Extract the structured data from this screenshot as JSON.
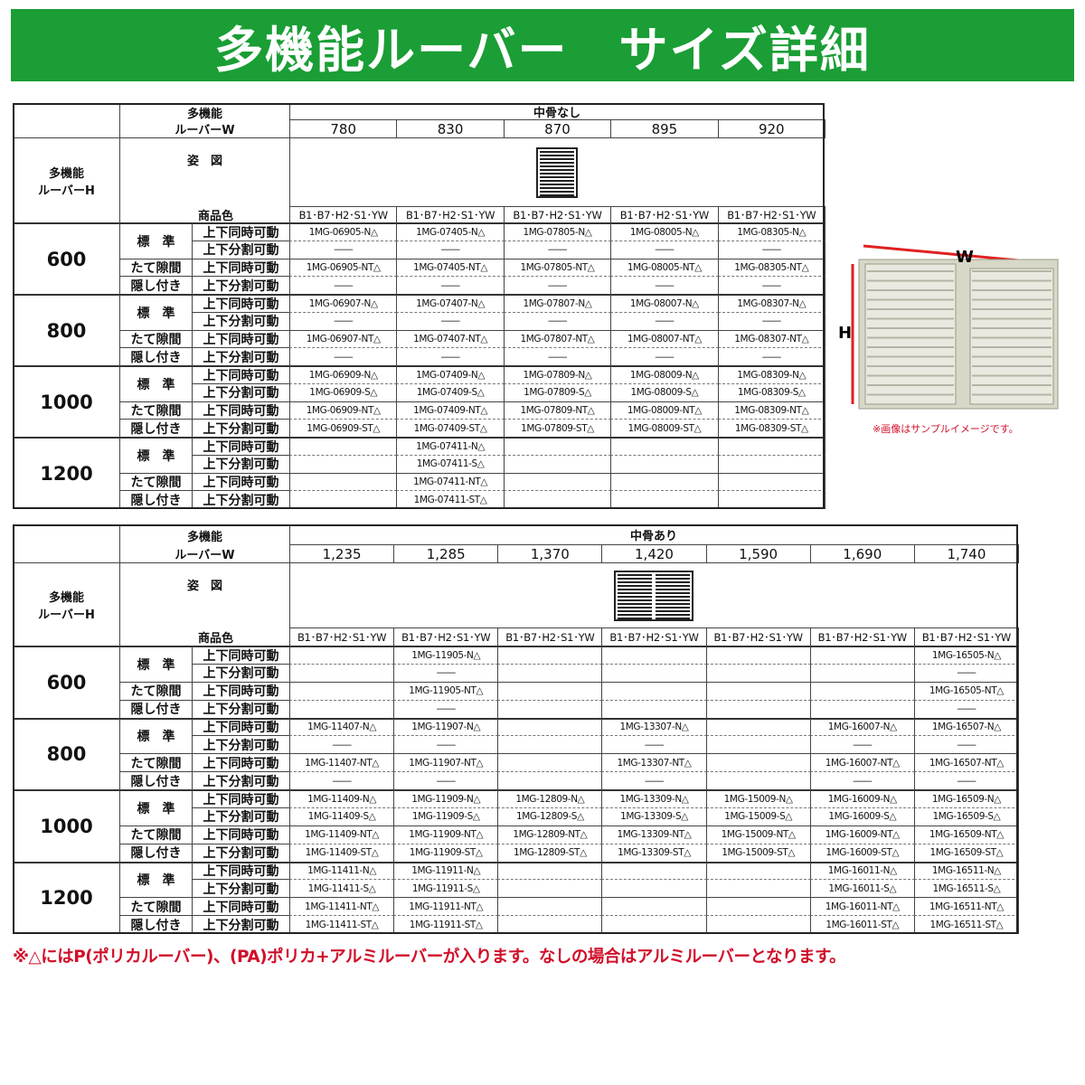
{
  "header": {
    "title": "多機能ルーバー　サイズ詳細"
  },
  "tables": [
    {
      "w_label": [
        "多機能",
        "ルーバーW"
      ],
      "h_label": [
        "多機能",
        "ルーバーH"
      ],
      "group": "中骨なし",
      "widths": [
        "780",
        "830",
        "870",
        "895",
        "920"
      ],
      "figure_label": "姿　図",
      "color_label": "商品色",
      "colors": [
        "B1･B7･H2･S1･YW",
        "B1･B7･H2･S1･YW",
        "B1･B7･H2･S1･YW",
        "B1･B7･H2･S1･YW",
        "B1･B7･H2･S1･YW"
      ],
      "row_types": [
        "標　準",
        "たて隙間",
        "隠し付き"
      ],
      "movements": [
        "上下同時可動",
        "上下分割可動"
      ],
      "sections": [
        {
          "height": "600",
          "rows": [
            [
              "1MG-06905-N△",
              "1MG-07405-N△",
              "1MG-07805-N△",
              "1MG-08005-N△",
              "1MG-08305-N△"
            ],
            [
              "――",
              "――",
              "――",
              "――",
              "――"
            ],
            [
              "1MG-06905-NT△",
              "1MG-07405-NT△",
              "1MG-07805-NT△",
              "1MG-08005-NT△",
              "1MG-08305-NT△"
            ],
            [
              "――",
              "――",
              "――",
              "――",
              "――"
            ]
          ]
        },
        {
          "height": "800",
          "rows": [
            [
              "1MG-06907-N△",
              "1MG-07407-N△",
              "1MG-07807-N△",
              "1MG-08007-N△",
              "1MG-08307-N△"
            ],
            [
              "――",
              "――",
              "――",
              "――",
              "――"
            ],
            [
              "1MG-06907-NT△",
              "1MG-07407-NT△",
              "1MG-07807-NT△",
              "1MG-08007-NT△",
              "1MG-08307-NT△"
            ],
            [
              "――",
              "――",
              "――",
              "――",
              "――"
            ]
          ]
        },
        {
          "height": "1000",
          "rows": [
            [
              "1MG-06909-N△",
              "1MG-07409-N△",
              "1MG-07809-N△",
              "1MG-08009-N△",
              "1MG-08309-N△"
            ],
            [
              "1MG-06909-S△",
              "1MG-07409-S△",
              "1MG-07809-S△",
              "1MG-08009-S△",
              "1MG-08309-S△"
            ],
            [
              "1MG-06909-NT△",
              "1MG-07409-NT△",
              "1MG-07809-NT△",
              "1MG-08009-NT△",
              "1MG-08309-NT△"
            ],
            [
              "1MG-06909-ST△",
              "1MG-07409-ST△",
              "1MG-07809-ST△",
              "1MG-08009-ST△",
              "1MG-08309-ST△"
            ]
          ]
        },
        {
          "height": "1200",
          "rows": [
            [
              null,
              "1MG-07411-N△",
              null,
              null,
              null
            ],
            [
              null,
              "1MG-07411-S△",
              null,
              null,
              null
            ],
            [
              null,
              "1MG-07411-NT△",
              null,
              null,
              null
            ],
            [
              null,
              "1MG-07411-ST△",
              null,
              null,
              null
            ]
          ]
        }
      ]
    },
    {
      "w_label": [
        "多機能",
        "ルーバーW"
      ],
      "h_label": [
        "多機能",
        "ルーバーH"
      ],
      "group": "中骨あり",
      "widths": [
        "1,235",
        "1,285",
        "1,370",
        "1,420",
        "1,590",
        "1,690",
        "1,740"
      ],
      "figure_label": "姿　図",
      "color_label": "商品色",
      "colors": [
        "B1･B7･H2･S1･YW",
        "B1･B7･H2･S1･YW",
        "B1･B7･H2･S1･YW",
        "B1･B7･H2･S1･YW",
        "B1･B7･H2･S1･YW",
        "B1･B7･H2･S1･YW",
        "B1･B7･H2･S1･YW"
      ],
      "row_types": [
        "標　準",
        "たて隙間",
        "隠し付き"
      ],
      "movements": [
        "上下同時可動",
        "上下分割可動"
      ],
      "sections": [
        {
          "height": "600",
          "rows": [
            [
              null,
              "1MG-11905-N△",
              null,
              null,
              null,
              null,
              "1MG-16505-N△"
            ],
            [
              null,
              "――",
              null,
              null,
              null,
              null,
              "――"
            ],
            [
              null,
              "1MG-11905-NT△",
              null,
              null,
              null,
              null,
              "1MG-16505-NT△"
            ],
            [
              null,
              "――",
              null,
              null,
              null,
              null,
              "――"
            ]
          ]
        },
        {
          "height": "800",
          "rows": [
            [
              "1MG-11407-N△",
              "1MG-11907-N△",
              null,
              "1MG-13307-N△",
              null,
              "1MG-16007-N△",
              "1MG-16507-N△"
            ],
            [
              "――",
              "――",
              null,
              "――",
              null,
              "――",
              "――"
            ],
            [
              "1MG-11407-NT△",
              "1MG-11907-NT△",
              null,
              "1MG-13307-NT△",
              null,
              "1MG-16007-NT△",
              "1MG-16507-NT△"
            ],
            [
              "――",
              "――",
              null,
              "――",
              null,
              "――",
              "――"
            ]
          ]
        },
        {
          "height": "1000",
          "rows": [
            [
              "1MG-11409-N△",
              "1MG-11909-N△",
              "1MG-12809-N△",
              "1MG-13309-N△",
              "1MG-15009-N△",
              "1MG-16009-N△",
              "1MG-16509-N△"
            ],
            [
              "1MG-11409-S△",
              "1MG-11909-S△",
              "1MG-12809-S△",
              "1MG-13309-S△",
              "1MG-15009-S△",
              "1MG-16009-S△",
              "1MG-16509-S△"
            ],
            [
              "1MG-11409-NT△",
              "1MG-11909-NT△",
              "1MG-12809-NT△",
              "1MG-13309-NT△",
              "1MG-15009-NT△",
              "1MG-16009-NT△",
              "1MG-16509-NT△"
            ],
            [
              "1MG-11409-ST△",
              "1MG-11909-ST△",
              "1MG-12809-ST△",
              "1MG-13309-ST△",
              "1MG-15009-ST△",
              "1MG-16009-ST△",
              "1MG-16509-ST△"
            ]
          ]
        },
        {
          "height": "1200",
          "rows": [
            [
              "1MG-11411-N△",
              "1MG-11911-N△",
              null,
              null,
              null,
              "1MG-16011-N△",
              "1MG-16511-N△"
            ],
            [
              "1MG-11411-S△",
              "1MG-11911-S△",
              null,
              null,
              null,
              "1MG-16011-S△",
              "1MG-16511-S△"
            ],
            [
              "1MG-11411-NT△",
              "1MG-11911-NT△",
              null,
              null,
              null,
              "1MG-16011-NT△",
              "1MG-16511-NT△"
            ],
            [
              "1MG-11411-ST△",
              "1MG-11911-ST△",
              null,
              null,
              null,
              "1MG-16011-ST△",
              "1MG-16511-ST△"
            ]
          ]
        }
      ]
    }
  ],
  "sample": {
    "w_label": "W",
    "h_label": "H",
    "caption": "※画像はサンプルイメージです。"
  },
  "note": "※△にはP(ポリカルーバー)、(PA)ポリカ+アルミルーバーが入ります。なしの場合はアルミルーバーとなります。"
}
